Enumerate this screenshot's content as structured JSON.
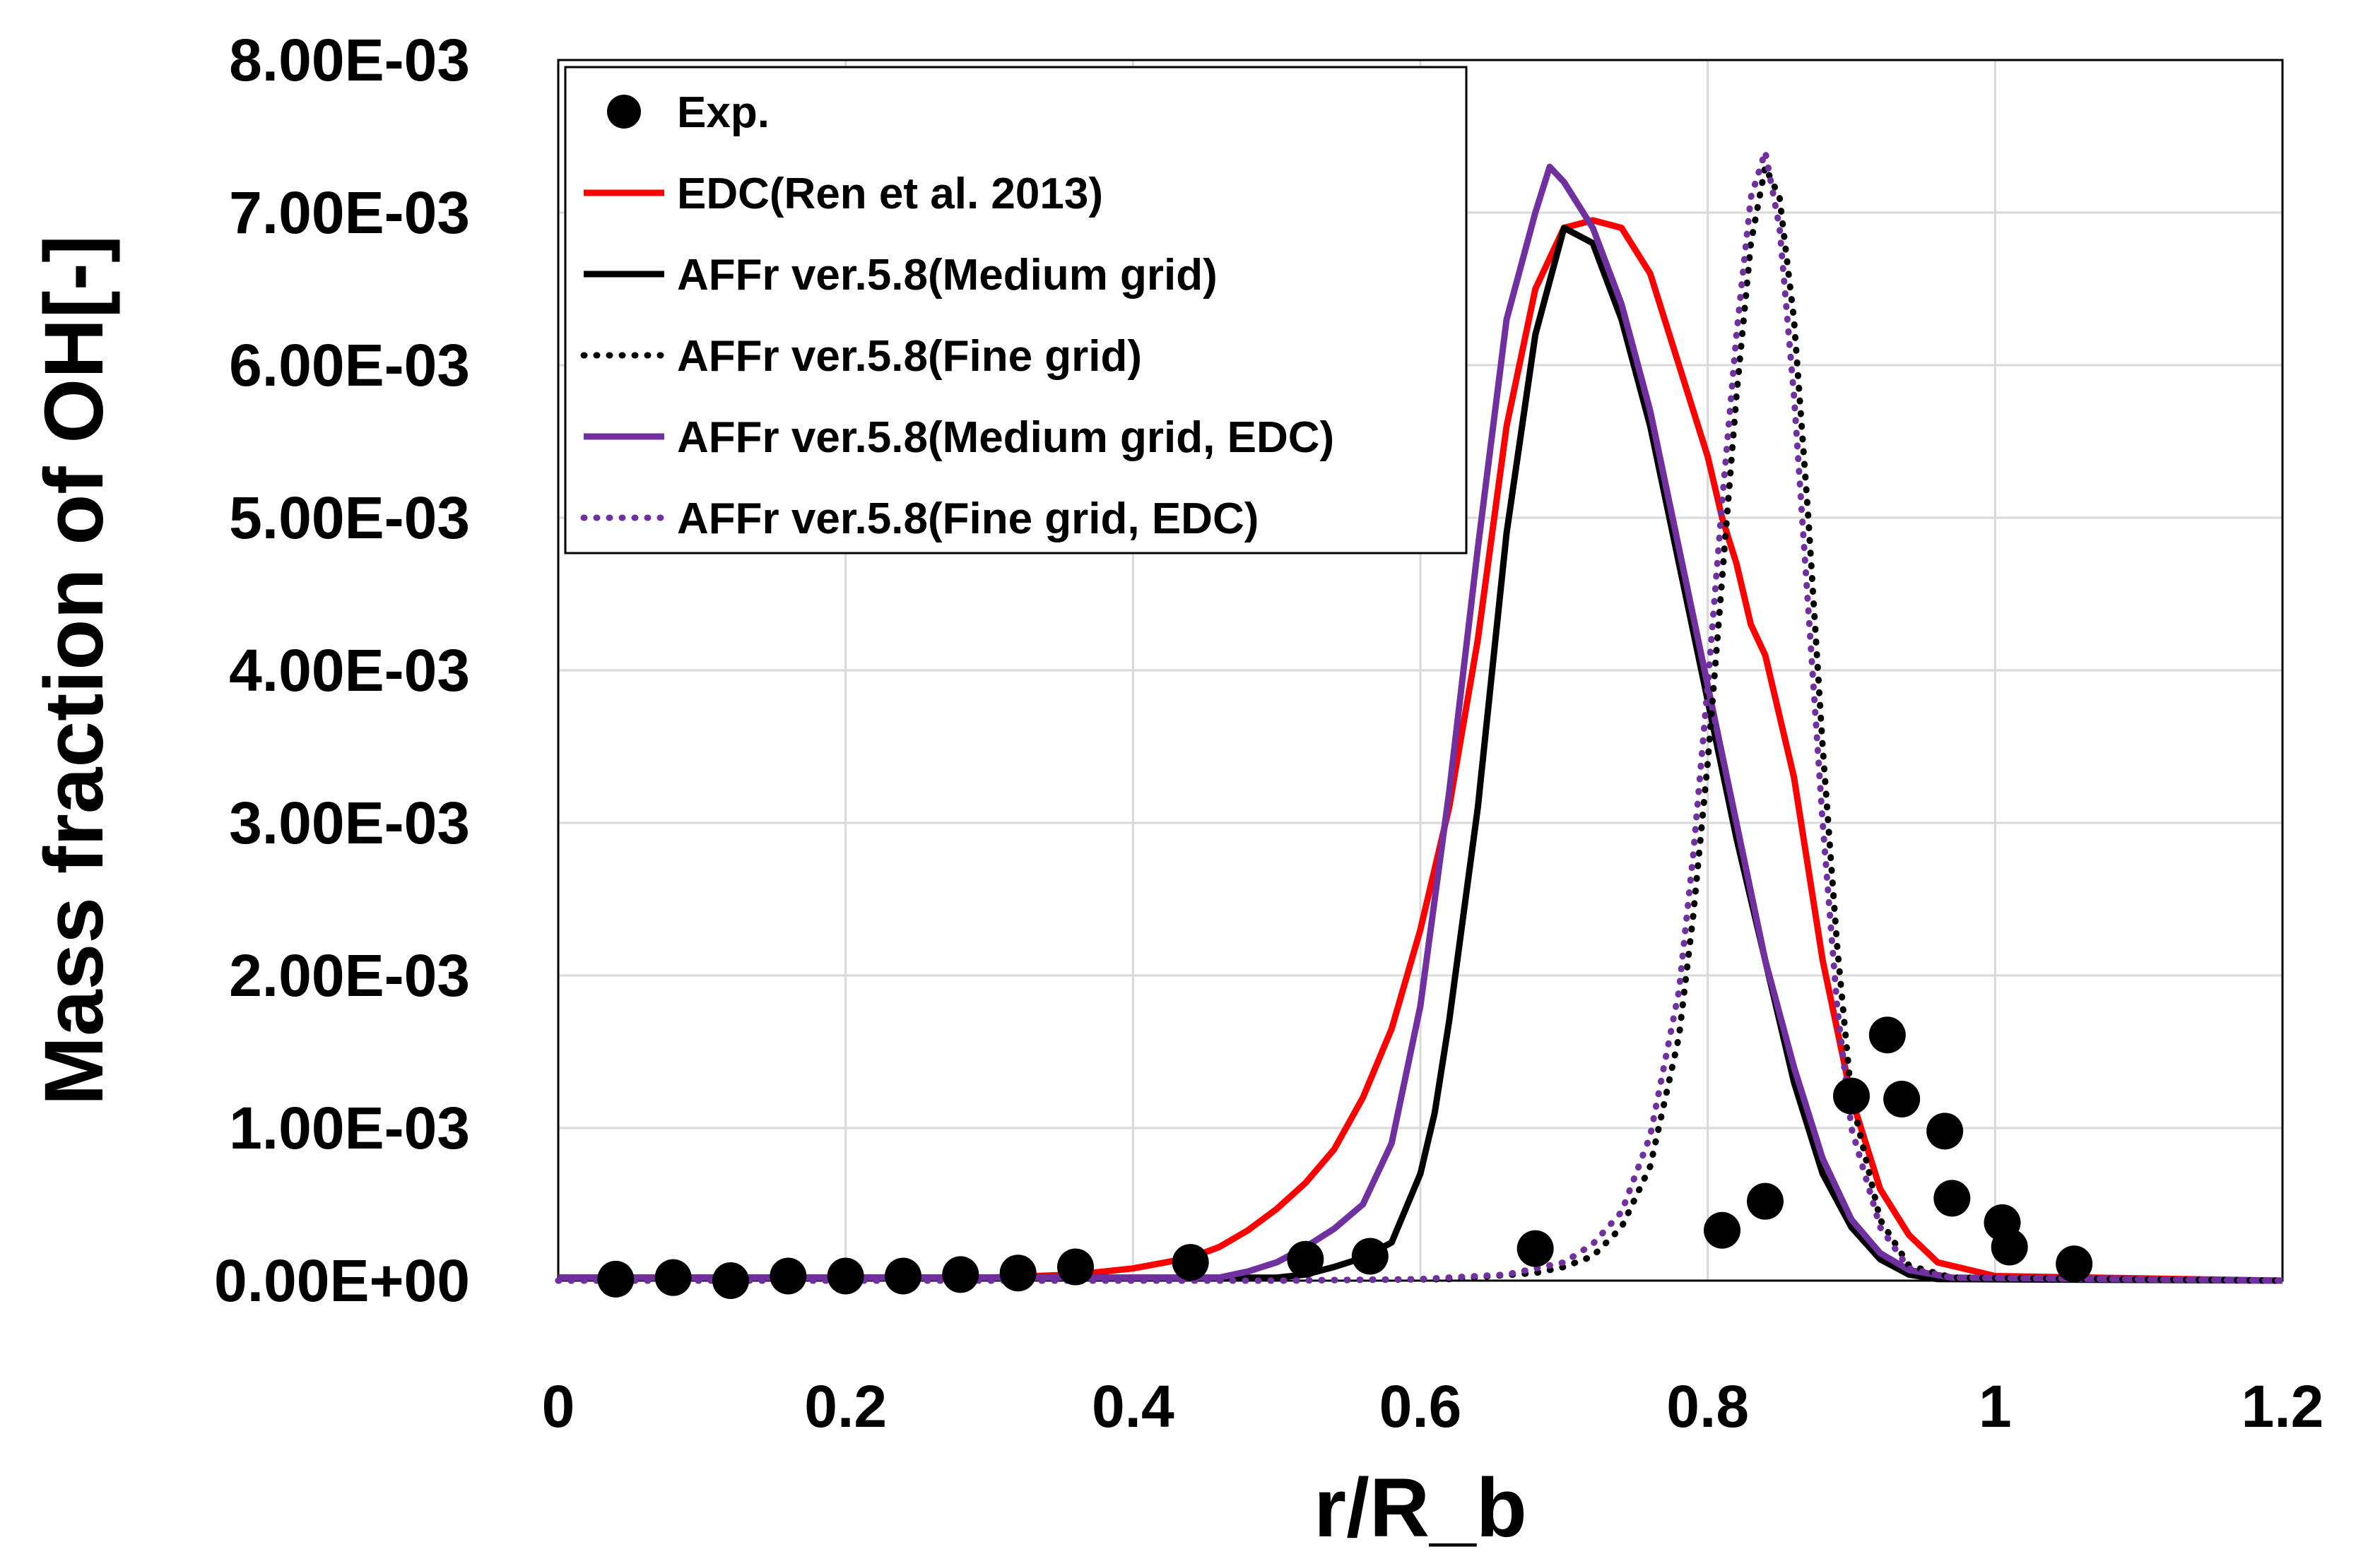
{
  "chart_data": {
    "type": "line",
    "title": "",
    "xlabel": "r/R_b",
    "ylabel": "Mass fraction of OH[-]",
    "xlim": [
      0,
      1.2
    ],
    "ylim": [
      0,
      0.008
    ],
    "xticks": [
      "0",
      "0.2",
      "0.4",
      "0.6",
      "0.8",
      "1",
      "1.2"
    ],
    "yticks": [
      "0.00E+00",
      "1.00E-03",
      "2.00E-03",
      "3.00E-03",
      "4.00E-03",
      "5.00E-03",
      "6.00E-03",
      "7.00E-03",
      "8.00E-03"
    ],
    "grid": true,
    "legend_position": "top-left",
    "series": [
      {
        "name": "Exp.",
        "style": "marker",
        "color": "#000000",
        "points": [
          [
            0.04,
            1e-05
          ],
          [
            0.08,
            2e-05
          ],
          [
            0.12,
            0.0
          ],
          [
            0.16,
            3e-05
          ],
          [
            0.2,
            3e-05
          ],
          [
            0.24,
            3e-05
          ],
          [
            0.28,
            4e-05
          ],
          [
            0.32,
            5e-05
          ],
          [
            0.36,
            9e-05
          ],
          [
            0.44,
            0.00012
          ],
          [
            0.52,
            0.00014
          ],
          [
            0.565,
            0.00016
          ],
          [
            0.68,
            0.00021
          ],
          [
            0.81,
            0.00033
          ],
          [
            0.84,
            0.00052
          ],
          [
            0.9,
            0.00121
          ],
          [
            0.925,
            0.00161
          ],
          [
            0.935,
            0.00119
          ],
          [
            0.965,
            0.00098
          ],
          [
            0.97,
            0.00054
          ],
          [
            1.005,
            0.00038
          ],
          [
            1.01,
            0.00022
          ],
          [
            1.055,
            0.00011
          ]
        ]
      },
      {
        "name": "EDC(Ren et al. 2013)",
        "style": "solid",
        "color": "#ff0000",
        "points": [
          [
            0,
            2e-05
          ],
          [
            0.3,
            2e-05
          ],
          [
            0.36,
            4e-05
          ],
          [
            0.4,
            8e-05
          ],
          [
            0.44,
            0.00015
          ],
          [
            0.46,
            0.00022
          ],
          [
            0.48,
            0.00033
          ],
          [
            0.5,
            0.00047
          ],
          [
            0.52,
            0.00064
          ],
          [
            0.54,
            0.00086
          ],
          [
            0.56,
            0.0012
          ],
          [
            0.58,
            0.00165
          ],
          [
            0.6,
            0.0023
          ],
          [
            0.62,
            0.0031
          ],
          [
            0.64,
            0.0042
          ],
          [
            0.66,
            0.0056
          ],
          [
            0.68,
            0.0065
          ],
          [
            0.7,
            0.0069
          ],
          [
            0.72,
            0.00695
          ],
          [
            0.74,
            0.0069
          ],
          [
            0.76,
            0.0066
          ],
          [
            0.78,
            0.006
          ],
          [
            0.8,
            0.0054
          ],
          [
            0.81,
            0.005
          ],
          [
            0.82,
            0.0047
          ],
          [
            0.83,
            0.0043
          ],
          [
            0.84,
            0.0041
          ],
          [
            0.85,
            0.0037
          ],
          [
            0.86,
            0.0033
          ],
          [
            0.87,
            0.0027
          ],
          [
            0.88,
            0.0021
          ],
          [
            0.9,
            0.0012
          ],
          [
            0.92,
            0.0006
          ],
          [
            0.94,
            0.0003
          ],
          [
            0.96,
            0.00012
          ],
          [
            1.0,
            3e-05
          ],
          [
            1.2,
            0.0
          ]
        ]
      },
      {
        "name": "AFFr ver.5.8(Medium grid)",
        "style": "solid",
        "color": "#000000",
        "points": [
          [
            0,
            2e-05
          ],
          [
            0.3,
            2e-05
          ],
          [
            0.5,
            2e-05
          ],
          [
            0.52,
            4e-05
          ],
          [
            0.54,
            9e-05
          ],
          [
            0.56,
            0.00015
          ],
          [
            0.58,
            0.00025
          ],
          [
            0.6,
            0.0007
          ],
          [
            0.61,
            0.0011
          ],
          [
            0.62,
            0.0017
          ],
          [
            0.64,
            0.0031
          ],
          [
            0.66,
            0.0049
          ],
          [
            0.68,
            0.0062
          ],
          [
            0.7,
            0.0069
          ],
          [
            0.72,
            0.0068
          ],
          [
            0.74,
            0.0063
          ],
          [
            0.76,
            0.0056
          ],
          [
            0.78,
            0.0047
          ],
          [
            0.8,
            0.0038
          ],
          [
            0.82,
            0.0029
          ],
          [
            0.84,
            0.0021
          ],
          [
            0.86,
            0.0013
          ],
          [
            0.88,
            0.0007
          ],
          [
            0.9,
            0.00035
          ],
          [
            0.92,
            0.00014
          ],
          [
            0.94,
            4e-05
          ],
          [
            0.96,
            1e-05
          ],
          [
            1.2,
            0.0
          ]
        ]
      },
      {
        "name": "AFFr ver.5.8(Fine grid)",
        "style": "dotted",
        "color": "#000000",
        "points": [
          [
            0,
            0.0
          ],
          [
            0.5,
            0.0
          ],
          [
            0.62,
            1e-05
          ],
          [
            0.68,
            5e-05
          ],
          [
            0.7,
            9e-05
          ],
          [
            0.72,
            0.00016
          ],
          [
            0.74,
            0.00035
          ],
          [
            0.76,
            0.00075
          ],
          [
            0.78,
            0.0016
          ],
          [
            0.79,
            0.0024
          ],
          [
            0.8,
            0.0034
          ],
          [
            0.81,
            0.0046
          ],
          [
            0.82,
            0.0058
          ],
          [
            0.83,
            0.0068
          ],
          [
            0.84,
            0.0073
          ],
          [
            0.85,
            0.0071
          ],
          [
            0.86,
            0.0063
          ],
          [
            0.87,
            0.005
          ],
          [
            0.88,
            0.0035
          ],
          [
            0.89,
            0.0022
          ],
          [
            0.9,
            0.0012
          ],
          [
            0.92,
            0.0004
          ],
          [
            0.94,
            0.0001
          ],
          [
            0.97,
            2e-05
          ],
          [
            1.2,
            0.0
          ]
        ]
      },
      {
        "name": "AFFr ver.5.8(Medium grid, EDC)",
        "style": "solid",
        "color": "#7030a0",
        "points": [
          [
            0,
            2e-05
          ],
          [
            0.3,
            2e-05
          ],
          [
            0.46,
            2e-05
          ],
          [
            0.48,
            6e-05
          ],
          [
            0.5,
            0.00012
          ],
          [
            0.52,
            0.00022
          ],
          [
            0.54,
            0.00034
          ],
          [
            0.56,
            0.0005
          ],
          [
            0.58,
            0.0009
          ],
          [
            0.6,
            0.0018
          ],
          [
            0.62,
            0.0032
          ],
          [
            0.64,
            0.0048
          ],
          [
            0.66,
            0.0063
          ],
          [
            0.68,
            0.007
          ],
          [
            0.69,
            0.0073
          ],
          [
            0.7,
            0.0072
          ],
          [
            0.72,
            0.0069
          ],
          [
            0.74,
            0.0064
          ],
          [
            0.76,
            0.0057
          ],
          [
            0.78,
            0.0048
          ],
          [
            0.8,
            0.0039
          ],
          [
            0.82,
            0.003
          ],
          [
            0.84,
            0.0021
          ],
          [
            0.86,
            0.0014
          ],
          [
            0.88,
            0.0008
          ],
          [
            0.9,
            0.0004
          ],
          [
            0.92,
            0.00018
          ],
          [
            0.94,
            7e-05
          ],
          [
            0.97,
            2e-05
          ],
          [
            1.2,
            0.0
          ]
        ]
      },
      {
        "name": "AFFr ver.5.8(Fine grid, EDC)",
        "style": "dotted",
        "color": "#7030a0",
        "points": [
          [
            0,
            0.0
          ],
          [
            0.5,
            0.0
          ],
          [
            0.6,
            1e-05
          ],
          [
            0.66,
            4e-05
          ],
          [
            0.7,
            0.00012
          ],
          [
            0.72,
            0.00024
          ],
          [
            0.74,
            0.00045
          ],
          [
            0.76,
            0.00095
          ],
          [
            0.78,
            0.0019
          ],
          [
            0.79,
            0.0028
          ],
          [
            0.8,
            0.0039
          ],
          [
            0.81,
            0.0051
          ],
          [
            0.82,
            0.0062
          ],
          [
            0.83,
            0.0071
          ],
          [
            0.84,
            0.0074
          ],
          [
            0.85,
            0.0069
          ],
          [
            0.86,
            0.0058
          ],
          [
            0.87,
            0.0044
          ],
          [
            0.88,
            0.003
          ],
          [
            0.89,
            0.0018
          ],
          [
            0.9,
            0.001
          ],
          [
            0.92,
            0.00035
          ],
          [
            0.94,
            8e-05
          ],
          [
            0.97,
            2e-05
          ],
          [
            1.2,
            0.0
          ]
        ]
      }
    ]
  }
}
